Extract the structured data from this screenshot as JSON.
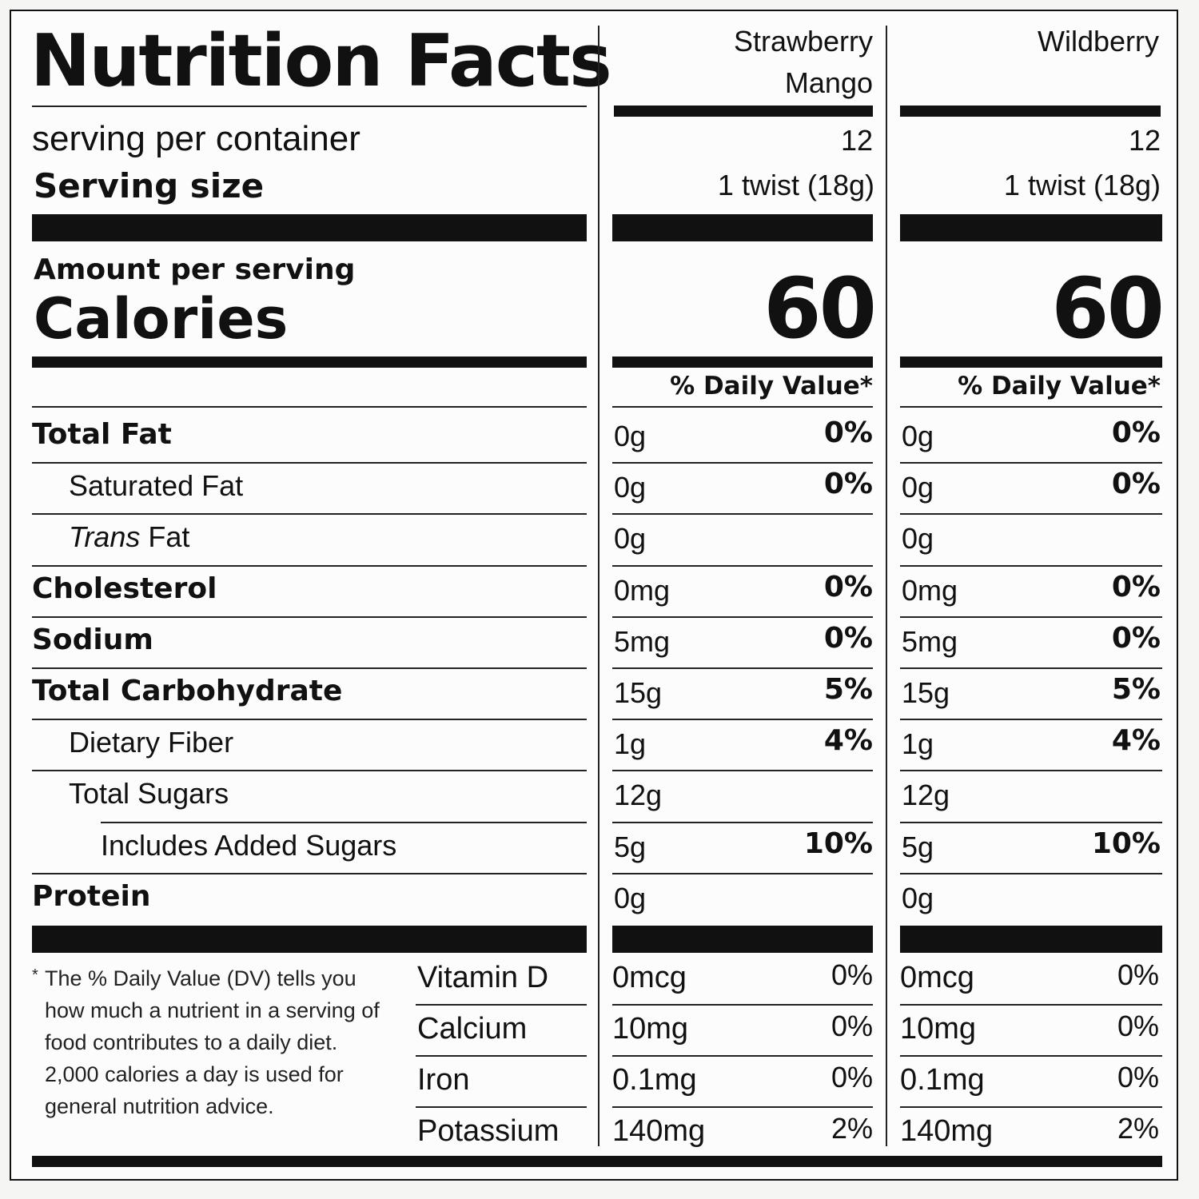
{
  "label": {
    "title": "Nutrition Facts",
    "servings_label": "serving per container",
    "serving_size_label": "Serving size",
    "amount_per_serving": "Amount per serving",
    "calories_label": "Calories",
    "dv_header": "% Daily Value*",
    "footnote_star": "*",
    "footnote": "The % Daily Value (DV) tells you how much a nutrient in a serving of food contributes to a daily diet. 2,000 calories a day is used for general nutrition advice."
  },
  "products": [
    {
      "name_line1": "Strawberry",
      "name_line2": "Mango",
      "servings": "12",
      "serving_size": "1 twist (18g)",
      "calories": "60"
    },
    {
      "name_line1": "Wildberry",
      "name_line2": "",
      "servings": "12",
      "serving_size": "1 twist (18g)",
      "calories": "60"
    }
  ],
  "nutrients": [
    {
      "name": "Total Fat",
      "style": "bold",
      "values": [
        {
          "amount": "0g",
          "dv": "0%"
        },
        {
          "amount": "0g",
          "dv": "0%"
        }
      ]
    },
    {
      "name": "Saturated Fat",
      "style": "indent",
      "values": [
        {
          "amount": "0g",
          "dv": "0%"
        },
        {
          "amount": "0g",
          "dv": "0%"
        }
      ]
    },
    {
      "name_italic": "Trans",
      "name": " Fat",
      "style": "indent",
      "values": [
        {
          "amount": "0g",
          "dv": ""
        },
        {
          "amount": "0g",
          "dv": ""
        }
      ]
    },
    {
      "name": "Cholesterol",
      "style": "bold",
      "values": [
        {
          "amount": "0mg",
          "dv": "0%"
        },
        {
          "amount": "0mg",
          "dv": "0%"
        }
      ]
    },
    {
      "name": "Sodium",
      "style": "bold",
      "values": [
        {
          "amount": "5mg",
          "dv": "0%"
        },
        {
          "amount": "5mg",
          "dv": "0%"
        }
      ]
    },
    {
      "name": "Total Carbohydrate",
      "style": "bold",
      "values": [
        {
          "amount": "15g",
          "dv": "5%"
        },
        {
          "amount": "15g",
          "dv": "5%"
        }
      ]
    },
    {
      "name": "Dietary Fiber",
      "style": "indent",
      "values": [
        {
          "amount": "1g",
          "dv": "4%"
        },
        {
          "amount": "1g",
          "dv": "4%"
        }
      ]
    },
    {
      "name": "Total Sugars",
      "style": "indent",
      "values": [
        {
          "amount": "12g",
          "dv": ""
        },
        {
          "amount": "12g",
          "dv": ""
        }
      ]
    },
    {
      "name": "Includes Added Sugars",
      "style": "indent2",
      "values": [
        {
          "amount": "5g",
          "dv": "10%"
        },
        {
          "amount": "5g",
          "dv": "10%"
        }
      ]
    },
    {
      "name": "Protein",
      "style": "bold",
      "values": [
        {
          "amount": "0g",
          "dv": ""
        },
        {
          "amount": "0g",
          "dv": ""
        }
      ]
    }
  ],
  "vitamins": [
    {
      "name": "Vitamin D",
      "values": [
        {
          "amount": "0mcg",
          "dv": "0%"
        },
        {
          "amount": "0mcg",
          "dv": "0%"
        }
      ]
    },
    {
      "name": "Calcium",
      "values": [
        {
          "amount": "10mg",
          "dv": "0%"
        },
        {
          "amount": "10mg",
          "dv": "0%"
        }
      ]
    },
    {
      "name": "Iron",
      "values": [
        {
          "amount": "0.1mg",
          "dv": "0%"
        },
        {
          "amount": "0.1mg",
          "dv": "0%"
        }
      ]
    },
    {
      "name": "Potassium",
      "values": [
        {
          "amount": "140mg",
          "dv": "2%"
        },
        {
          "amount": "140mg",
          "dv": "2%"
        }
      ]
    }
  ]
}
